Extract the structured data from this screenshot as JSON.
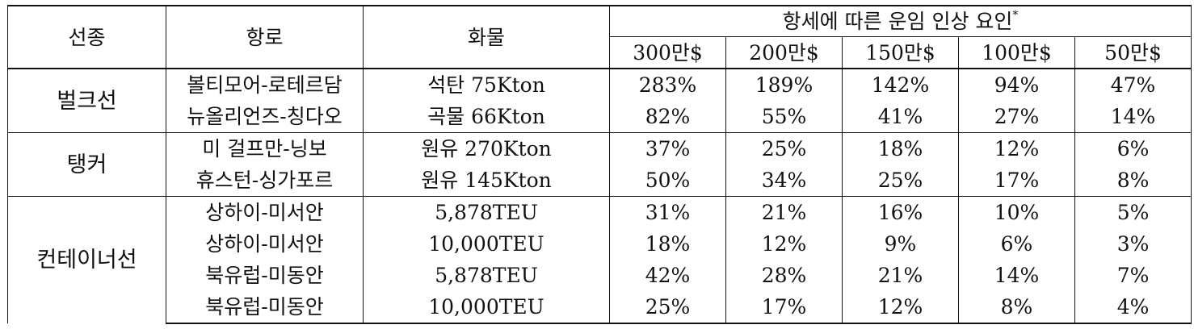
{
  "header": {
    "ship_type": "선종",
    "route": "항로",
    "cargo": "화물",
    "group": "항세에 따른 운임 인상 요인",
    "group_mark": "*",
    "tax_levels": [
      "300만$",
      "200만$",
      "150만$",
      "100만$",
      "50만$"
    ]
  },
  "groups": [
    {
      "ship": "벌크선",
      "rows": [
        {
          "route": "볼티모어-로테르담",
          "cargo": "석탄 75Kton",
          "values": [
            "283%",
            "189%",
            "142%",
            "94%",
            "47%"
          ]
        },
        {
          "route": "뉴올리언즈-칭다오",
          "cargo": "곡물 66Kton",
          "values": [
            "82%",
            "55%",
            "41%",
            "27%",
            "14%"
          ]
        }
      ]
    },
    {
      "ship": "탱커",
      "rows": [
        {
          "route": "미 걸프만-닝보",
          "cargo": "원유 270Kton",
          "values": [
            "37%",
            "25%",
            "18%",
            "12%",
            "6%"
          ]
        },
        {
          "route": "휴스턴-싱가포르",
          "cargo": "원유 145Kton",
          "values": [
            "50%",
            "34%",
            "25%",
            "17%",
            "8%"
          ]
        }
      ]
    },
    {
      "ship": "컨테이너선",
      "rows": [
        {
          "route": "상하이-미서안",
          "cargo": "5,878TEU",
          "values": [
            "31%",
            "21%",
            "16%",
            "10%",
            "5%"
          ]
        },
        {
          "route": "상하이-미서안",
          "cargo": "10,000TEU",
          "values": [
            "18%",
            "12%",
            "9%",
            "6%",
            "3%"
          ]
        },
        {
          "route": "북유럽-미동안",
          "cargo": "5,878TEU",
          "values": [
            "42%",
            "28%",
            "21%",
            "14%",
            "7%"
          ]
        },
        {
          "route": "북유럽-미동안",
          "cargo": "10,000TEU",
          "values": [
            "25%",
            "17%",
            "12%",
            "8%",
            "4%"
          ]
        }
      ]
    }
  ]
}
